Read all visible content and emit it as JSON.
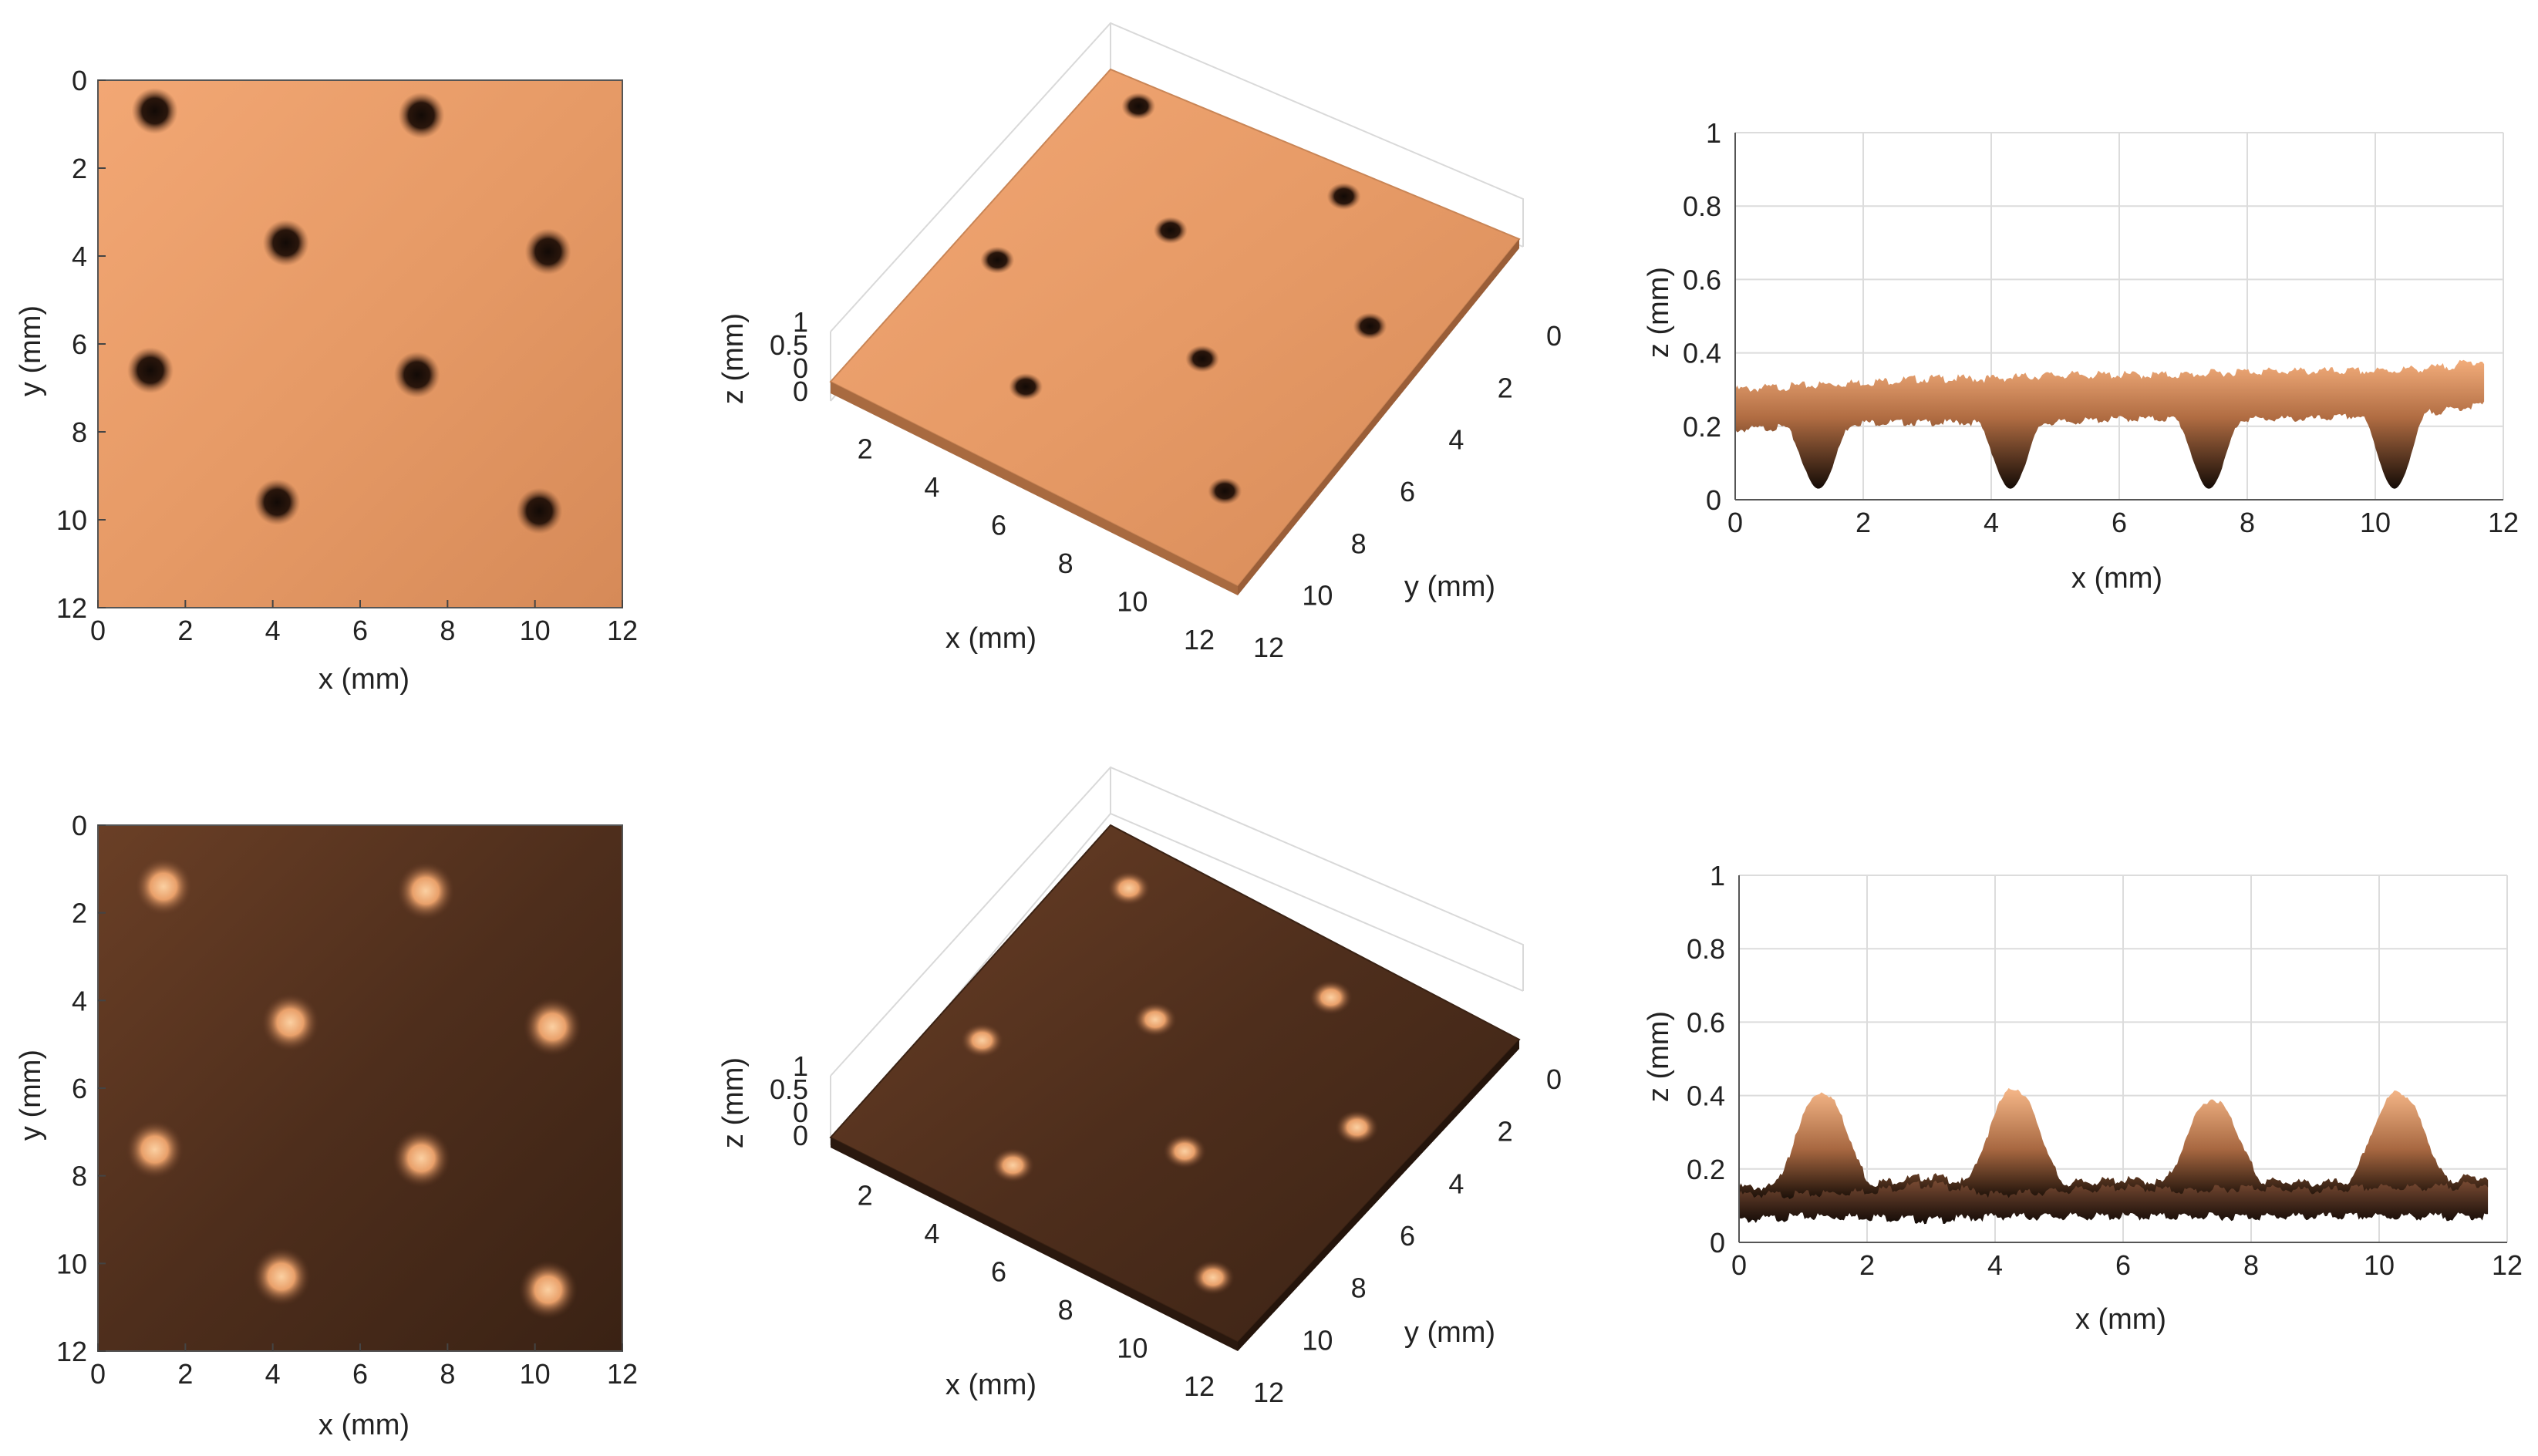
{
  "colors": {
    "dark": "#1e120c",
    "mid": "#7a4a2e",
    "surface_light": "#f0a670",
    "surface_dark": "#4a2c1c",
    "highlight": "#f7c08e",
    "grid": "#d9d9d9",
    "axis": "#333333"
  },
  "chart_data": [
    {
      "id": "top-map",
      "type": "heatmap",
      "xlabel": "x (mm)",
      "ylabel": "y (mm)",
      "xlim": [
        0,
        12
      ],
      "ylim": [
        0,
        12
      ],
      "xticks": [
        "0",
        "2",
        "4",
        "6",
        "8",
        "10",
        "12"
      ],
      "yticks": [
        "0",
        "2",
        "4",
        "6",
        "8",
        "10",
        "12"
      ],
      "surface": "light",
      "features": {
        "kind": "dimple",
        "points": [
          [
            1.3,
            0.7
          ],
          [
            7.4,
            0.8
          ],
          [
            4.3,
            3.7
          ],
          [
            10.3,
            3.9
          ],
          [
            1.2,
            6.6
          ],
          [
            7.3,
            6.7
          ],
          [
            4.1,
            9.6
          ],
          [
            10.1,
            9.8
          ]
        ]
      }
    },
    {
      "id": "top-3d",
      "type": "surface3d",
      "xlabel": "x (mm)",
      "ylabel": "y (mm)",
      "zlabel": "z (mm)",
      "xticks": [
        "2",
        "4",
        "6",
        "8",
        "10",
        "12"
      ],
      "yticks": [
        "0",
        "2",
        "4",
        "6",
        "8",
        "10",
        "12"
      ],
      "zticks": [
        "1",
        "0.5",
        "0",
        "0"
      ],
      "surface": "light",
      "features": {
        "kind": "dimple",
        "points": [
          [
            1.3,
            0.7
          ],
          [
            7.4,
            0.8
          ],
          [
            4.3,
            3.7
          ],
          [
            10.3,
            3.9
          ],
          [
            1.2,
            6.6
          ],
          [
            7.3,
            6.7
          ],
          [
            4.1,
            9.6
          ],
          [
            10.1,
            9.8
          ]
        ]
      }
    },
    {
      "id": "top-profile",
      "type": "area",
      "xlabel": "x (mm)",
      "ylabel": "z (mm)",
      "xlim": [
        0,
        12
      ],
      "ylim": [
        0,
        1
      ],
      "xticks": [
        "0",
        "2",
        "4",
        "6",
        "8",
        "10",
        "12"
      ],
      "yticks": [
        "0",
        "0.2",
        "0.4",
        "0.6",
        "0.8",
        "1"
      ],
      "series": [
        {
          "role": "upper",
          "x": [
            0,
            1,
            2,
            3,
            4,
            5,
            6,
            7,
            8,
            9,
            10,
            11,
            11.7
          ],
          "z": [
            0.3,
            0.31,
            0.32,
            0.33,
            0.33,
            0.34,
            0.34,
            0.34,
            0.35,
            0.35,
            0.35,
            0.36,
            0.38
          ]
        },
        {
          "role": "lower",
          "baseline": 0.21,
          "x": [
            0,
            1,
            2,
            3,
            4,
            5,
            6,
            7,
            8,
            9,
            10,
            11,
            11.7
          ],
          "z": [
            0.19,
            0.2,
            0.21,
            0.21,
            0.21,
            0.21,
            0.22,
            0.22,
            0.22,
            0.22,
            0.23,
            0.24,
            0.26
          ]
        },
        {
          "role": "dips",
          "center": [
            1.3,
            4.3,
            7.4,
            10.3
          ],
          "depth": [
            0.03,
            0.03,
            0.03,
            0.03
          ]
        }
      ]
    },
    {
      "id": "bottom-map",
      "type": "heatmap",
      "xlabel": "x (mm)",
      "ylabel": "y (mm)",
      "xlim": [
        0,
        12
      ],
      "ylim": [
        0,
        12
      ],
      "xticks": [
        "0",
        "2",
        "4",
        "6",
        "8",
        "10",
        "12"
      ],
      "yticks": [
        "0",
        "2",
        "4",
        "6",
        "8",
        "10",
        "12"
      ],
      "surface": "dark",
      "features": {
        "kind": "bump",
        "points": [
          [
            1.5,
            1.4
          ],
          [
            7.5,
            1.5
          ],
          [
            4.4,
            4.5
          ],
          [
            10.4,
            4.6
          ],
          [
            1.3,
            7.4
          ],
          [
            7.4,
            7.6
          ],
          [
            4.2,
            10.3
          ],
          [
            10.3,
            10.6
          ]
        ]
      }
    },
    {
      "id": "bottom-3d",
      "type": "surface3d",
      "xlabel": "x (mm)",
      "ylabel": "y (mm)",
      "zlabel": "z (mm)",
      "xticks": [
        "2",
        "4",
        "6",
        "8",
        "10",
        "12"
      ],
      "yticks": [
        "0",
        "2",
        "4",
        "6",
        "8",
        "10",
        "12"
      ],
      "zticks": [
        "1",
        "0.5",
        "0",
        "0"
      ],
      "surface": "dark",
      "features": {
        "kind": "bump",
        "points": [
          [
            1.5,
            1.4
          ],
          [
            7.5,
            1.5
          ],
          [
            4.4,
            4.5
          ],
          [
            10.4,
            4.6
          ],
          [
            1.3,
            7.4
          ],
          [
            7.4,
            7.6
          ],
          [
            4.2,
            10.3
          ],
          [
            10.3,
            10.6
          ]
        ]
      }
    },
    {
      "id": "bottom-profile",
      "type": "area",
      "xlabel": "x (mm)",
      "ylabel": "z (mm)",
      "xlim": [
        0,
        12
      ],
      "ylim": [
        0,
        1
      ],
      "xticks": [
        "0",
        "2",
        "4",
        "6",
        "8",
        "10",
        "12"
      ],
      "yticks": [
        "0",
        "0.2",
        "0.4",
        "0.6",
        "0.8",
        "1"
      ],
      "series": [
        {
          "role": "peaks",
          "center": [
            1.3,
            4.3,
            7.4,
            10.3
          ],
          "height": [
            0.41,
            0.42,
            0.39,
            0.41
          ]
        },
        {
          "role": "upper-base",
          "x": [
            0,
            1,
            2,
            3,
            4,
            5,
            6,
            7,
            8,
            9,
            10,
            11,
            11.7
          ],
          "z": [
            0.15,
            0.15,
            0.16,
            0.18,
            0.15,
            0.16,
            0.17,
            0.16,
            0.17,
            0.16,
            0.17,
            0.17,
            0.18
          ]
        },
        {
          "role": "lower-base",
          "x": [
            0,
            1,
            2,
            3,
            4,
            5,
            6,
            7,
            8,
            9,
            10,
            11,
            11.7
          ],
          "z": [
            0.06,
            0.07,
            0.07,
            0.06,
            0.07,
            0.07,
            0.07,
            0.07,
            0.07,
            0.07,
            0.07,
            0.07,
            0.07
          ]
        }
      ]
    }
  ]
}
